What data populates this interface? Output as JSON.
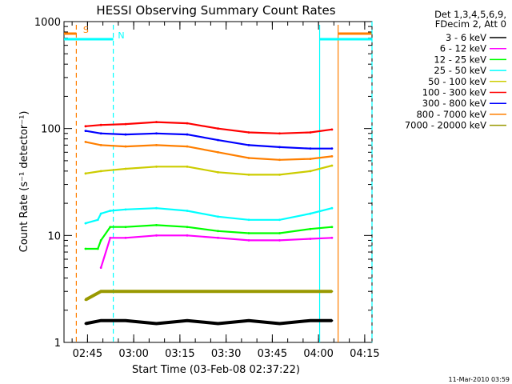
{
  "chart_data": {
    "type": "line",
    "title": "HESSI Observing Summary Count Rates",
    "xlabel": "Start Time (03-Feb-08 02:37:22)",
    "ylabel": "Count Rate (s⁻¹ detector⁻¹)",
    "x_unit": "minutes after 02:37:22",
    "xlim": [
      0,
      100
    ],
    "ylim": [
      1,
      1000
    ],
    "y_scale": "log",
    "x_tick_labels": [
      "02:45",
      "03:00",
      "03:15",
      "03:30",
      "03:45",
      "04:00",
      "04:15"
    ],
    "y_tick_labels": [
      "1",
      "10",
      "100",
      "1000"
    ],
    "legend_header": [
      "Det 1,3,4,5,6,9,",
      "FDecim 2, Att 0"
    ],
    "legend_position": "right",
    "grid": false,
    "timestamp": "11-Mar-2010 03:59",
    "flag_letters": [
      {
        "label": "S",
        "color": "#ff7f00"
      },
      {
        "label": "N",
        "color": "#00ffff"
      }
    ],
    "series": [
      {
        "name": "3 - 6 keV",
        "color": "#000000",
        "x": [
          7,
          12,
          20,
          30,
          40,
          50,
          60,
          70,
          80,
          87
        ],
        "values": [
          1.5,
          1.6,
          1.6,
          1.5,
          1.6,
          1.5,
          1.6,
          1.5,
          1.6,
          1.6
        ]
      },
      {
        "name": "6 - 12 keV",
        "color": "#ff00ff",
        "x": [
          12,
          15,
          20,
          30,
          40,
          50,
          60,
          70,
          80,
          87
        ],
        "values": [
          5,
          9.5,
          9.5,
          10,
          10,
          9.5,
          9,
          9,
          9.3,
          9.5
        ]
      },
      {
        "name": "12 - 25 keV",
        "color": "#00ff00",
        "x": [
          7,
          11,
          12,
          15,
          20,
          30,
          40,
          50,
          60,
          70,
          80,
          87
        ],
        "values": [
          7.5,
          7.5,
          9,
          12,
          12,
          12.5,
          12,
          11,
          10.5,
          10.5,
          11.5,
          12
        ]
      },
      {
        "name": "25 - 50 keV",
        "color": "#00ffff",
        "x": [
          7,
          11,
          12,
          15,
          20,
          30,
          40,
          50,
          60,
          70,
          80,
          87
        ],
        "values": [
          13,
          14,
          16,
          17,
          17.5,
          18,
          17,
          15,
          14,
          14,
          16,
          18
        ]
      },
      {
        "name": "50 - 100 keV",
        "color": "#cccc00",
        "x": [
          7,
          12,
          20,
          30,
          40,
          50,
          60,
          70,
          80,
          87
        ],
        "values": [
          38,
          40,
          42,
          44,
          44,
          39,
          37,
          37,
          40,
          45
        ]
      },
      {
        "name": "100 - 300 keV",
        "color": "#ff0000",
        "x": [
          7,
          12,
          20,
          30,
          40,
          50,
          60,
          70,
          80,
          87
        ],
        "values": [
          105,
          108,
          110,
          115,
          112,
          100,
          92,
          90,
          92,
          98
        ]
      },
      {
        "name": "300 - 800 keV",
        "color": "#0000ff",
        "x": [
          7,
          12,
          20,
          30,
          40,
          50,
          60,
          70,
          80,
          87
        ],
        "values": [
          95,
          90,
          88,
          90,
          88,
          78,
          70,
          67,
          65,
          65
        ]
      },
      {
        "name": "800 - 7000 keV",
        "color": "#ff7f00",
        "x": [
          7,
          12,
          20,
          30,
          40,
          50,
          60,
          70,
          80,
          87
        ],
        "values": [
          75,
          70,
          68,
          70,
          68,
          60,
          53,
          51,
          52,
          55
        ]
      },
      {
        "name": "7000 - 20000 keV",
        "color": "#999900",
        "x": [
          7,
          12,
          20,
          30,
          40,
          50,
          60,
          70,
          80,
          87
        ],
        "values": [
          2.5,
          3,
          3,
          3,
          3,
          3,
          3,
          3,
          3,
          3
        ]
      }
    ]
  }
}
